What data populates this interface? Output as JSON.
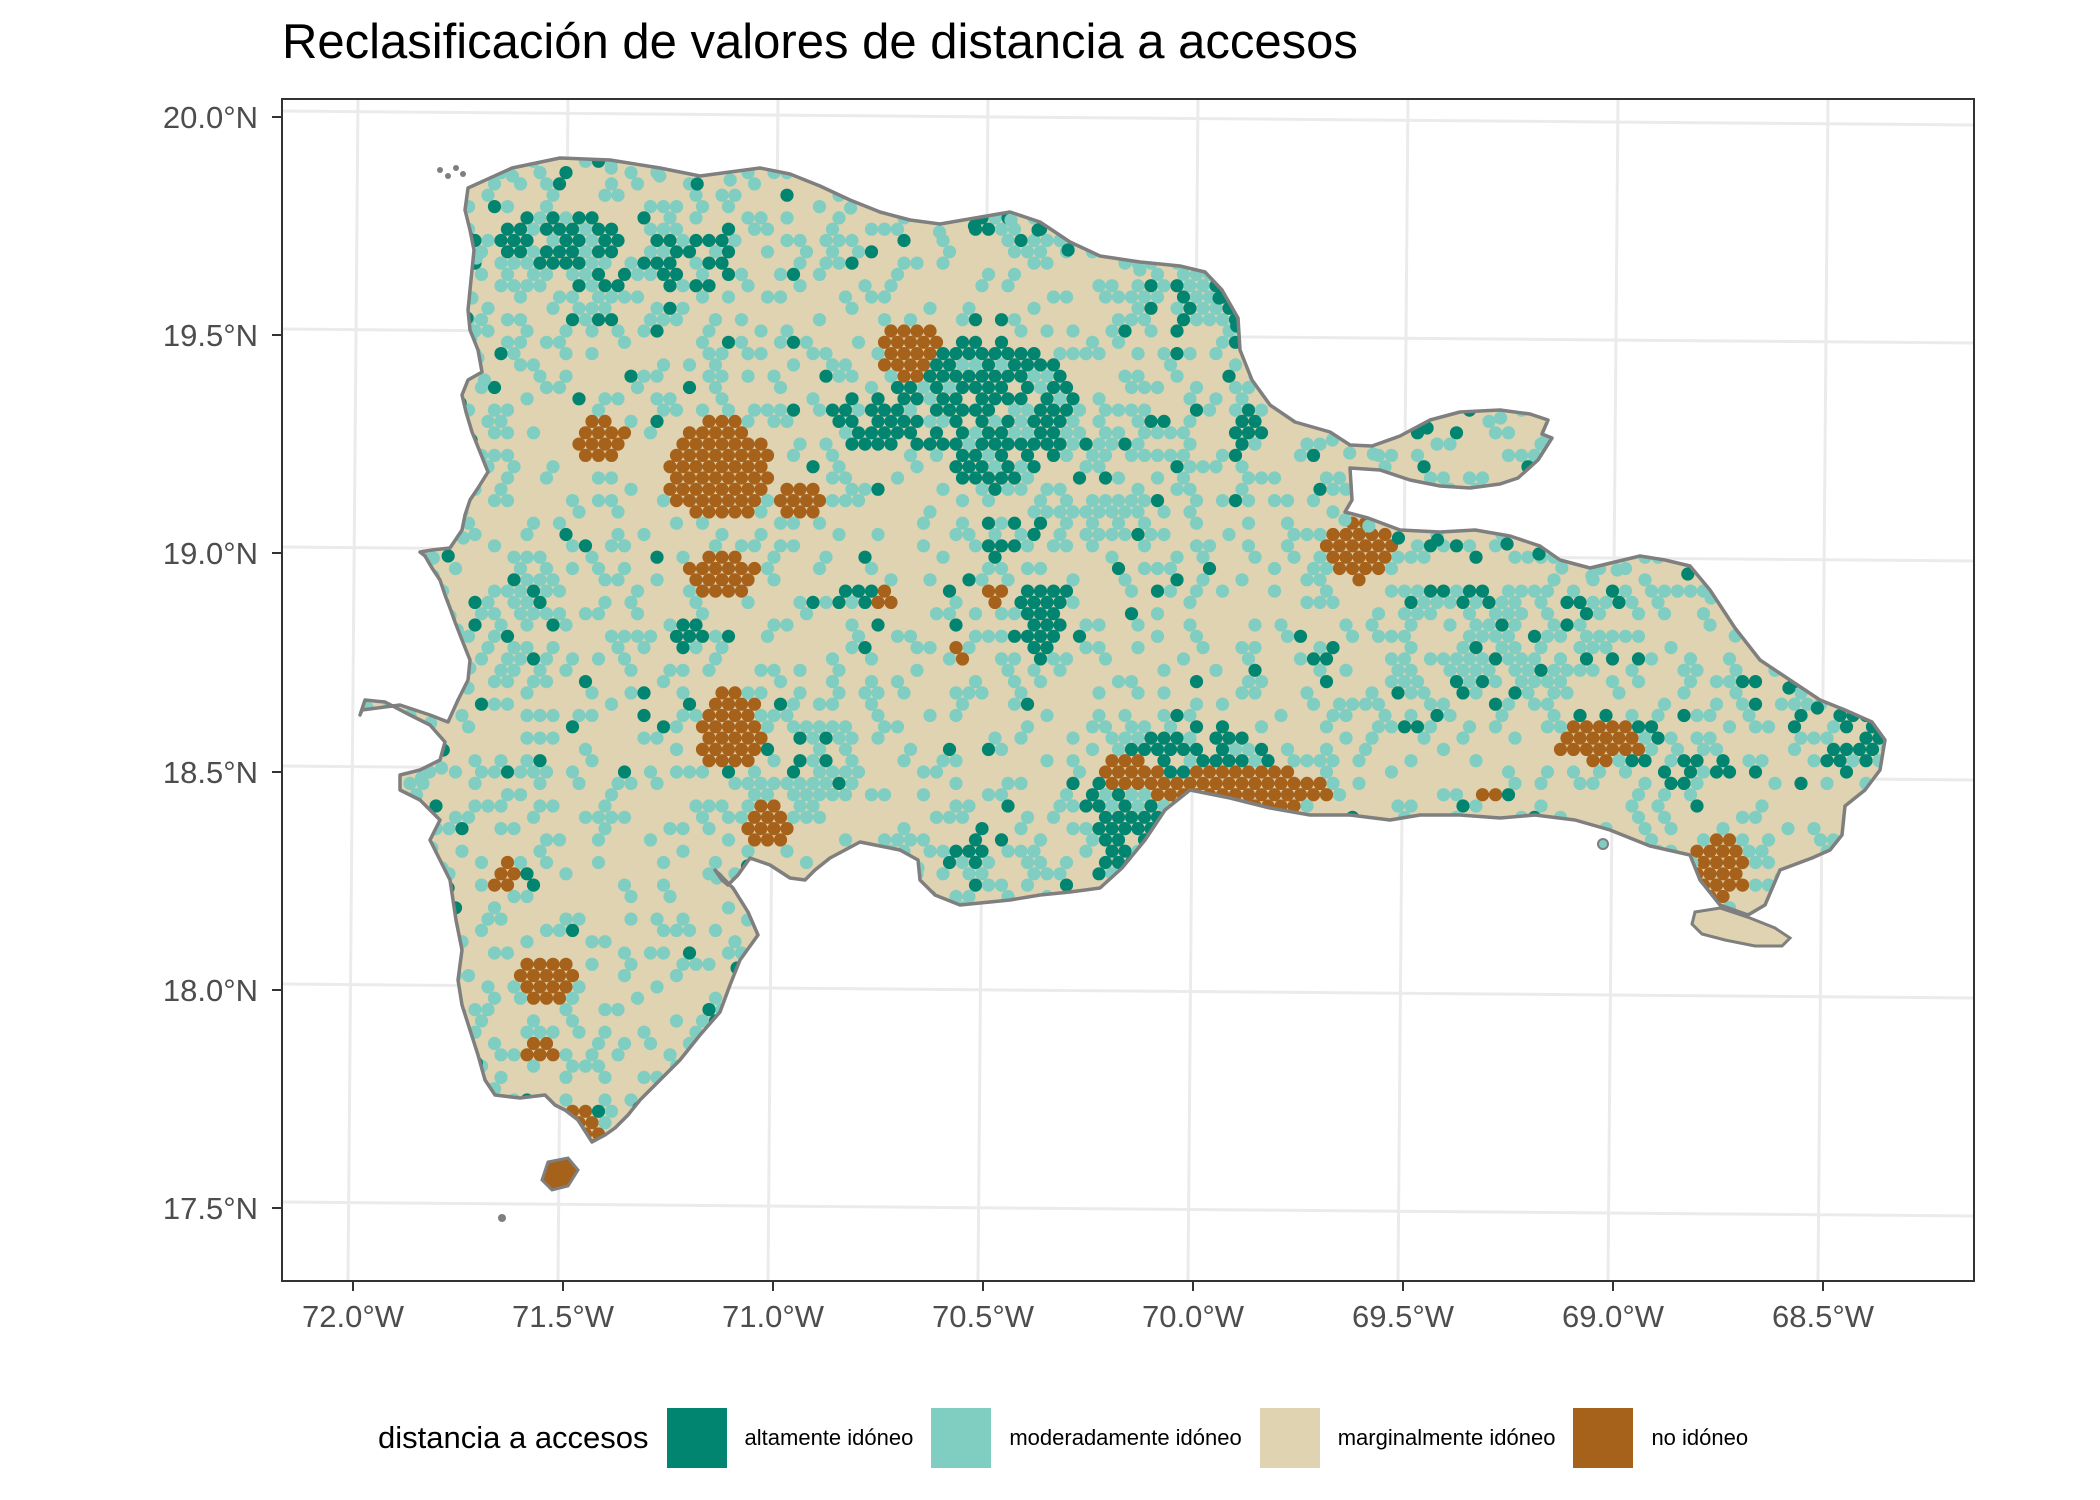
{
  "title": "Reclasificación de valores de distancia a accesos",
  "map": {
    "latitude_labels": [
      "20.0°N",
      "19.5°N",
      "19.0°N",
      "18.5°N",
      "18.0°N",
      "17.5°N"
    ],
    "longitude_labels": [
      "72.0°W",
      "71.5°W",
      "71.0°W",
      "70.5°W",
      "70.0°W",
      "69.5°W",
      "69.0°W",
      "68.5°W"
    ],
    "grid": true,
    "outline_color": "#7f7f7f"
  },
  "legend": {
    "title": "distancia a accesos",
    "items": [
      {
        "label": "altamente idóneo",
        "color": "#018571"
      },
      {
        "label": "moderadamente idóneo",
        "color": "#80cdc1"
      },
      {
        "label": "marginalmente idóneo",
        "color": "#dfd3b1"
      },
      {
        "label": "no idóneo",
        "color": "#a6611a"
      }
    ]
  }
}
